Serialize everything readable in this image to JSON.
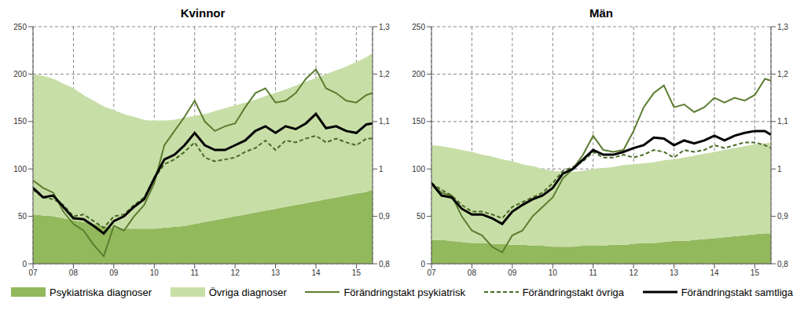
{
  "chart_data": [
    {
      "type": "area",
      "title": "Kvinnor",
      "stacked": true,
      "grid": true,
      "x": [
        7,
        7.25,
        7.5,
        7.75,
        8,
        8.25,
        8.5,
        8.75,
        9,
        9.25,
        9.5,
        9.75,
        10,
        10.25,
        10.5,
        10.75,
        11,
        11.25,
        11.5,
        11.75,
        12,
        12.25,
        12.5,
        12.75,
        13,
        13.25,
        13.5,
        13.75,
        14,
        14.25,
        14.5,
        14.75,
        15,
        15.25,
        15.4
      ],
      "xlim": [
        7,
        15.4
      ],
      "xticks": [
        {
          "value": 7,
          "label": "07"
        },
        {
          "value": 8,
          "label": "08"
        },
        {
          "value": 9,
          "label": "09"
        },
        10,
        11,
        12,
        13,
        14,
        15
      ],
      "ylim": [
        0,
        250
      ],
      "yticks": [
        0,
        50,
        100,
        150,
        200,
        250
      ],
      "y2lim": [
        0.8,
        1.3
      ],
      "y2ticks": [
        {
          "value": 0.8,
          "label": "0,8"
        },
        {
          "value": 0.9,
          "label": "0,9"
        },
        1,
        {
          "value": 1.1,
          "label": "1,1"
        },
        {
          "value": 1.2,
          "label": "1,2"
        },
        {
          "value": 1.3,
          "label": "1,3"
        }
      ],
      "series": [
        {
          "name": "Psykiatriska diagnoser",
          "type": "area",
          "color": "#93b95d",
          "values": [
            52,
            51,
            50,
            48,
            46,
            44,
            42,
            40,
            38,
            37,
            37,
            37,
            37,
            38,
            39,
            40,
            42,
            44,
            46,
            48,
            50,
            52,
            54,
            56,
            58,
            60,
            62,
            64,
            66,
            68,
            70,
            72,
            74,
            76,
            78
          ]
        },
        {
          "name": "Övriga diagnoser",
          "type": "area",
          "color": "#c8dea7",
          "values": [
            148,
            147,
            145,
            142,
            139,
            134,
            130,
            126,
            124,
            121,
            118,
            115,
            114,
            113,
            113,
            114,
            114,
            114,
            115,
            116,
            117,
            118,
            119,
            121,
            122,
            124,
            126,
            128,
            130,
            132,
            134,
            136,
            139,
            142,
            144
          ]
        },
        {
          "name": "Förändringstakt psykiatrisk",
          "type": "line",
          "axis": "y2",
          "color": "#5b7d2f",
          "line_style": "solid",
          "values": [
            0.976,
            0.96,
            0.95,
            0.91,
            0.884,
            0.87,
            0.84,
            0.816,
            0.88,
            0.87,
            0.9,
            0.924,
            0.97,
            1.05,
            1.08,
            1.11,
            1.144,
            1.1,
            1.08,
            1.09,
            1.096,
            1.13,
            1.16,
            1.17,
            1.14,
            1.144,
            1.16,
            1.19,
            1.21,
            1.17,
            1.16,
            1.144,
            1.14,
            1.156,
            1.16
          ]
        },
        {
          "name": "Förändringstakt övriga",
          "type": "line",
          "axis": "y2",
          "color": "#4a6a26",
          "line_style": "dashed",
          "values": [
            0.956,
            0.94,
            0.936,
            0.924,
            0.9,
            0.904,
            0.89,
            0.876,
            0.9,
            0.904,
            0.924,
            0.94,
            0.98,
            1.01,
            1.02,
            1.036,
            1.056,
            1.024,
            1.016,
            1.02,
            1.024,
            1.036,
            1.044,
            1.06,
            1.04,
            1.06,
            1.056,
            1.064,
            1.07,
            1.056,
            1.064,
            1.056,
            1.05,
            1.064,
            1.064
          ]
        },
        {
          "name": "Förändringstakt samtliga",
          "type": "line",
          "axis": "y2",
          "color": "#000000",
          "line_style": "solid",
          "values": [
            0.96,
            0.94,
            0.944,
            0.92,
            0.896,
            0.894,
            0.88,
            0.864,
            0.89,
            0.9,
            0.92,
            0.936,
            0.98,
            1.02,
            1.03,
            1.05,
            1.076,
            1.05,
            1.04,
            1.04,
            1.05,
            1.06,
            1.08,
            1.09,
            1.076,
            1.09,
            1.084,
            1.096,
            1.116,
            1.086,
            1.09,
            1.08,
            1.076,
            1.094,
            1.096
          ]
        }
      ]
    },
    {
      "type": "area",
      "title": "Män",
      "stacked": true,
      "grid": true,
      "x": [
        7,
        7.25,
        7.5,
        7.75,
        8,
        8.25,
        8.5,
        8.75,
        9,
        9.25,
        9.5,
        9.75,
        10,
        10.25,
        10.5,
        10.75,
        11,
        11.25,
        11.5,
        11.75,
        12,
        12.25,
        12.5,
        12.75,
        13,
        13.25,
        13.5,
        13.75,
        14,
        14.25,
        14.5,
        14.75,
        15,
        15.25,
        15.4
      ],
      "xlim": [
        7,
        15.4
      ],
      "xticks": [
        {
          "value": 7,
          "label": "07"
        },
        {
          "value": 8,
          "label": "08"
        },
        {
          "value": 9,
          "label": "09"
        },
        10,
        11,
        12,
        13,
        14,
        15
      ],
      "ylim": [
        0,
        250
      ],
      "yticks": [
        0,
        50,
        100,
        150,
        200,
        250
      ],
      "y2lim": [
        0.8,
        1.3
      ],
      "y2ticks": [
        {
          "value": 0.8,
          "label": "0,8"
        },
        {
          "value": 0.9,
          "label": "0,9"
        },
        1,
        {
          "value": 1.1,
          "label": "1,1"
        },
        {
          "value": 1.2,
          "label": "1,2"
        },
        {
          "value": 1.3,
          "label": "1,3"
        }
      ],
      "series": [
        {
          "name": "Psykiatriska diagnoser",
          "type": "area",
          "color": "#93b95d",
          "values": [
            25,
            25,
            24,
            23,
            22,
            22,
            21,
            21,
            20,
            20,
            19,
            19,
            18,
            18,
            18,
            19,
            19,
            19,
            20,
            20,
            21,
            22,
            22,
            23,
            24,
            24,
            25,
            26,
            27,
            28,
            29,
            30,
            31,
            32,
            32
          ]
        },
        {
          "name": "Övriga diagnoser",
          "type": "area",
          "color": "#c8dea7",
          "values": [
            100,
            99,
            98,
            97,
            96,
            93,
            92,
            89,
            88,
            85,
            84,
            81,
            80,
            79,
            79,
            79,
            81,
            82,
            82,
            84,
            84,
            84,
            85,
            86,
            86,
            88,
            89,
            90,
            91,
            92,
            93,
            94,
            95,
            95,
            96
          ]
        },
        {
          "name": "Förändringstakt psykiatrisk",
          "type": "line",
          "axis": "y2",
          "color": "#5b7d2f",
          "line_style": "solid",
          "values": [
            0.97,
            0.95,
            0.944,
            0.9,
            0.87,
            0.86,
            0.836,
            0.824,
            0.86,
            0.87,
            0.9,
            0.92,
            0.94,
            0.98,
            1.0,
            1.03,
            1.07,
            1.04,
            1.036,
            1.04,
            1.08,
            1.13,
            1.16,
            1.176,
            1.13,
            1.136,
            1.12,
            1.13,
            1.15,
            1.14,
            1.15,
            1.144,
            1.156,
            1.19,
            1.186
          ]
        },
        {
          "name": "Förändringstakt övriga",
          "type": "line",
          "axis": "y2",
          "color": "#4a6a26",
          "line_style": "dashed",
          "values": [
            0.97,
            0.956,
            0.944,
            0.924,
            0.91,
            0.91,
            0.904,
            0.896,
            0.92,
            0.93,
            0.94,
            0.95,
            0.97,
            0.996,
            1.004,
            1.016,
            1.036,
            1.024,
            1.024,
            1.03,
            1.024,
            1.03,
            1.04,
            1.036,
            1.024,
            1.04,
            1.036,
            1.04,
            1.05,
            1.044,
            1.05,
            1.056,
            1.056,
            1.05,
            1.044
          ]
        },
        {
          "name": "Förändringstakt samtliga",
          "type": "line",
          "axis": "y2",
          "color": "#000000",
          "line_style": "solid",
          "values": [
            0.97,
            0.944,
            0.94,
            0.916,
            0.904,
            0.904,
            0.896,
            0.884,
            0.91,
            0.924,
            0.936,
            0.944,
            0.96,
            0.99,
            1.0,
            1.02,
            1.04,
            1.03,
            1.03,
            1.036,
            1.044,
            1.05,
            1.066,
            1.064,
            1.05,
            1.06,
            1.054,
            1.06,
            1.07,
            1.06,
            1.07,
            1.076,
            1.08,
            1.08,
            1.072
          ]
        }
      ]
    }
  ]
}
